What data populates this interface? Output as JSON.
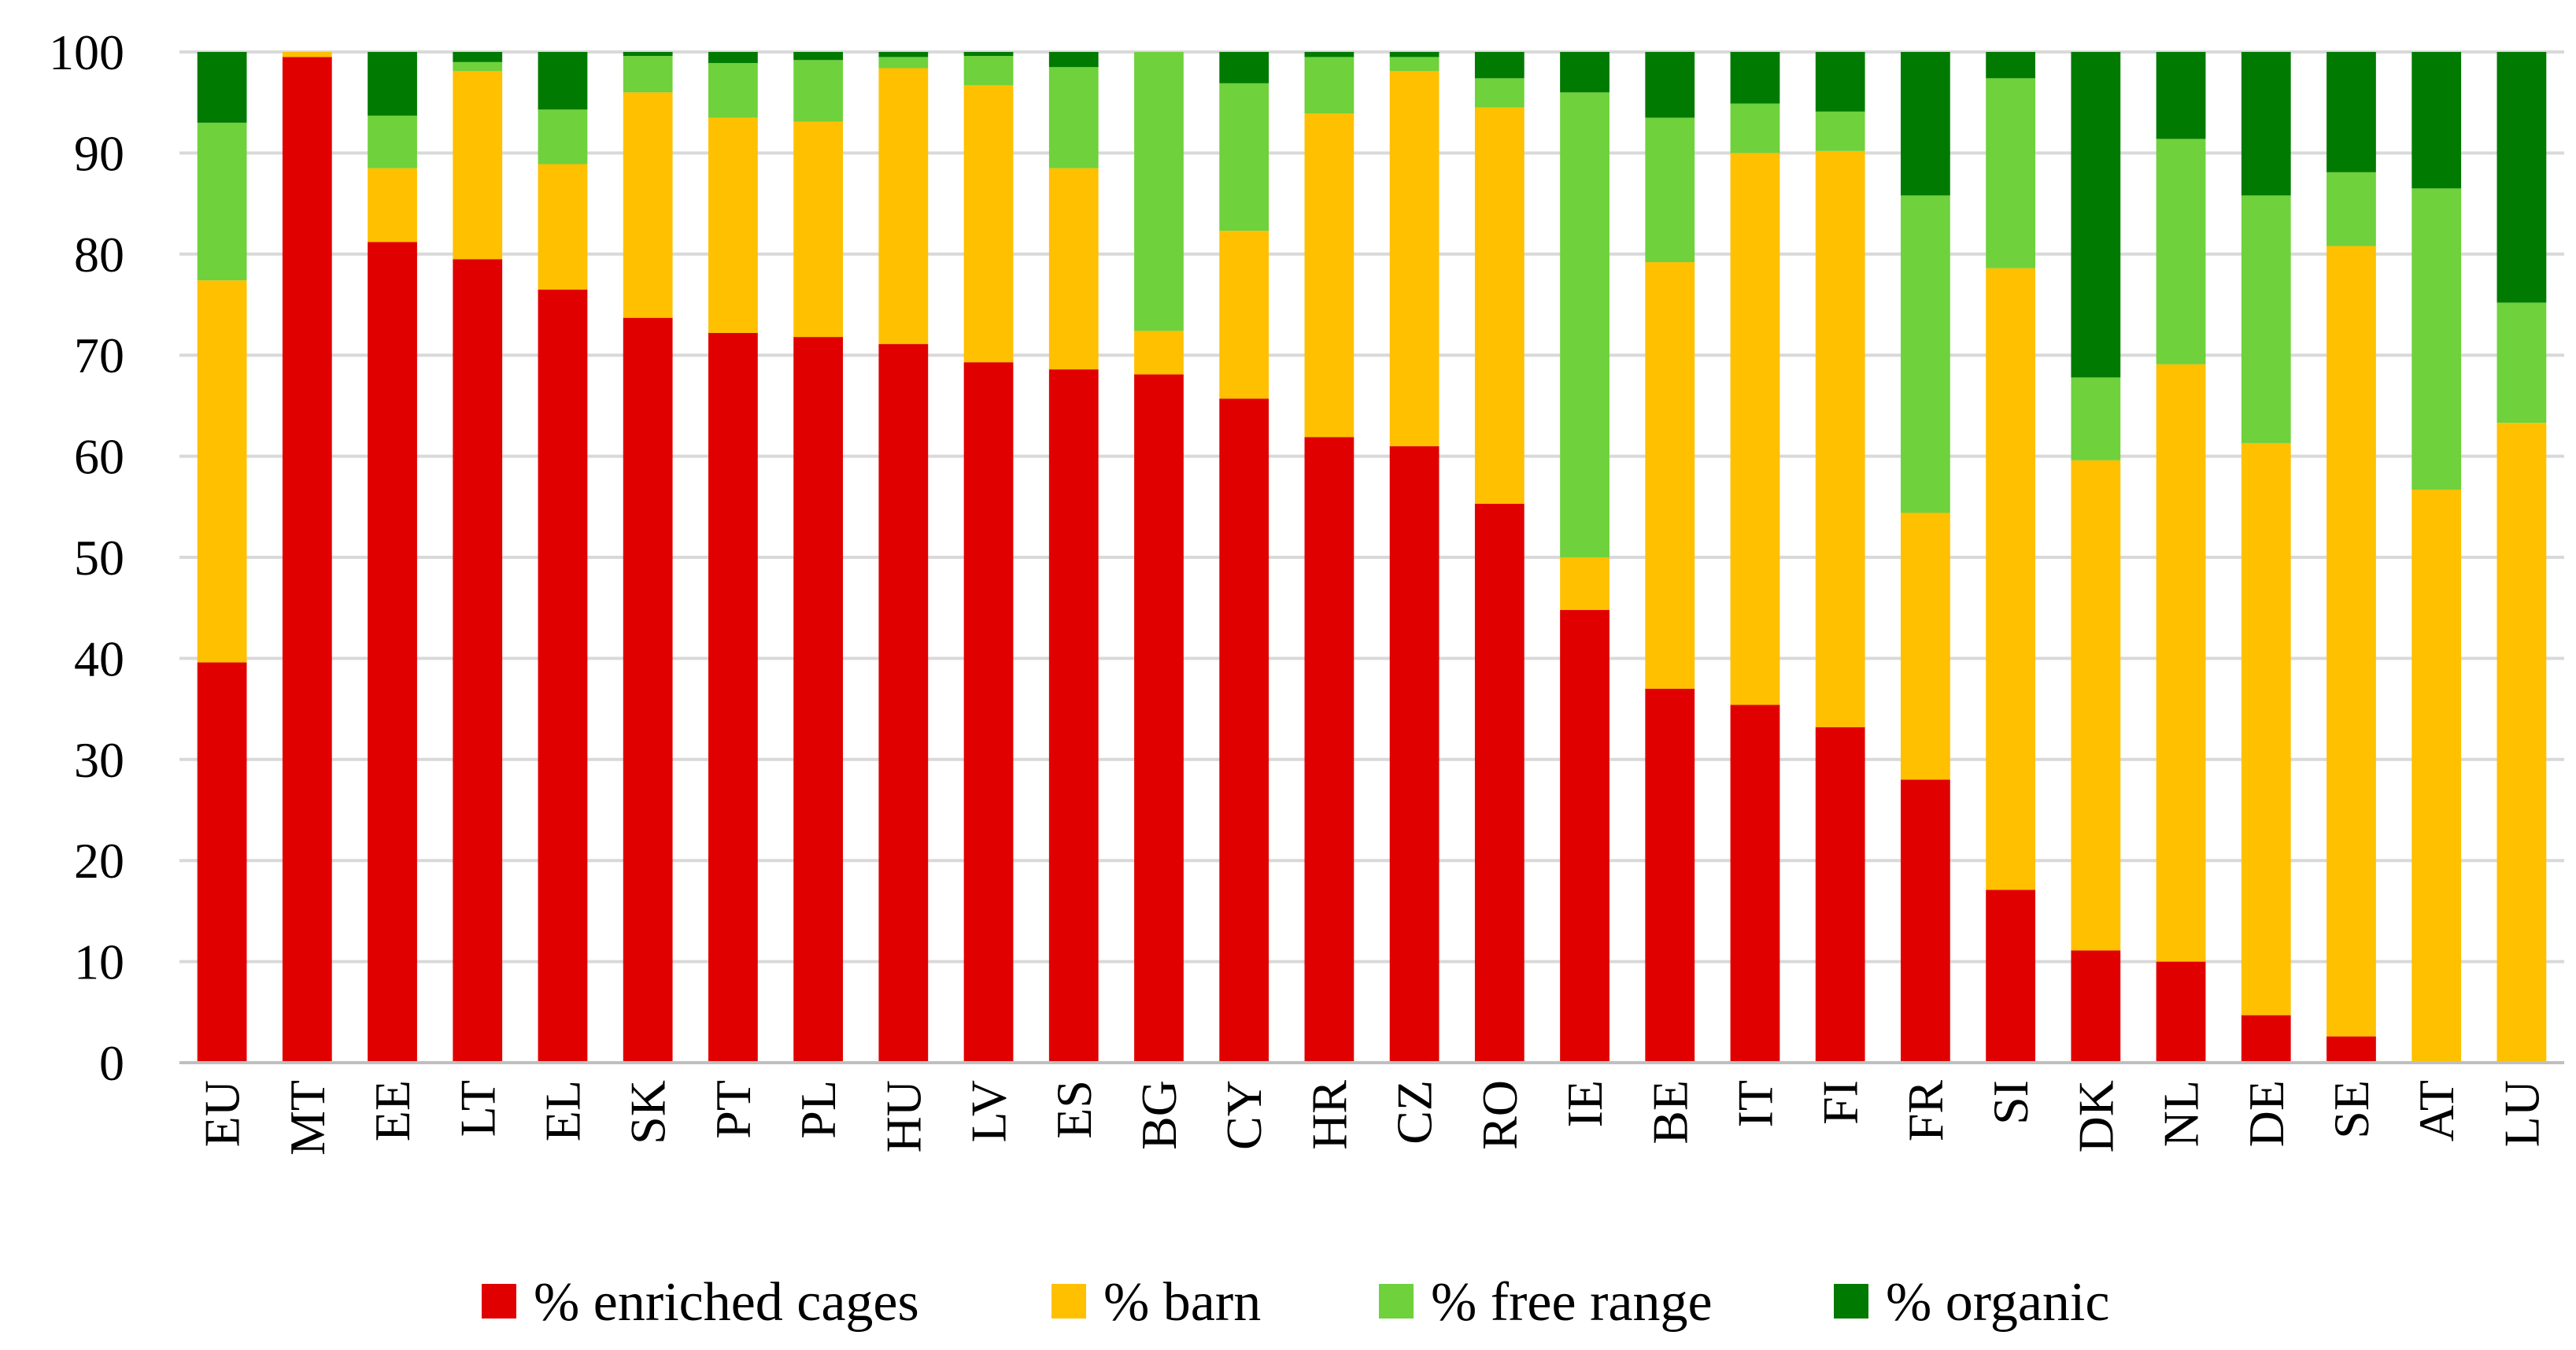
{
  "chart_data": {
    "type": "bar",
    "stacked": true,
    "title": "",
    "xlabel": "",
    "ylabel": "",
    "ylim": [
      0,
      100
    ],
    "yticks": [
      0,
      10,
      20,
      30,
      40,
      50,
      60,
      70,
      80,
      90,
      100
    ],
    "grid": true,
    "legend_position": "bottom",
    "categories": [
      "EU",
      "MT",
      "EE",
      "LT",
      "EL",
      "SK",
      "PT",
      "PL",
      "HU",
      "LV",
      "ES",
      "BG",
      "CY",
      "HR",
      "CZ",
      "RO",
      "IE",
      "BE",
      "IT",
      "FI",
      "FR",
      "SI",
      "DK",
      "NL",
      "DE",
      "SE",
      "AT",
      "LU"
    ],
    "series": [
      {
        "name": "% enriched cages",
        "color": "#e00000",
        "values": [
          39.6,
          99.5,
          81.2,
          79.5,
          76.5,
          73.7,
          72.2,
          71.8,
          71.1,
          69.3,
          68.6,
          68.1,
          65.7,
          61.9,
          61.0,
          55.3,
          44.8,
          37.0,
          35.4,
          33.2,
          28.0,
          17.1,
          11.1,
          10.0,
          4.7,
          2.6,
          0,
          0
        ]
      },
      {
        "name": "% barn",
        "color": "#ffc000",
        "values": [
          37.8,
          0.5,
          7.3,
          18.6,
          12.4,
          22.3,
          21.3,
          21.3,
          27.3,
          27.4,
          19.9,
          4.3,
          16.6,
          32.0,
          37.1,
          39.2,
          5.2,
          42.2,
          54.6,
          57.0,
          26.4,
          61.5,
          48.5,
          59.1,
          56.6,
          78.2,
          56.7,
          63.3
        ]
      },
      {
        "name": "% free range",
        "color": "#6fd13c",
        "values": [
          15.6,
          0,
          5.2,
          0.9,
          5.4,
          3.6,
          5.4,
          6.1,
          1.1,
          2.9,
          10.0,
          27.6,
          14.6,
          5.6,
          1.4,
          2.9,
          46.0,
          14.3,
          4.9,
          3.9,
          31.4,
          18.8,
          8.2,
          22.3,
          24.5,
          7.3,
          29.8,
          11.9
        ]
      },
      {
        "name": "% organic",
        "color": "#007a00",
        "values": [
          7.0,
          0,
          6.3,
          1.0,
          5.7,
          0.4,
          1.1,
          0.8,
          0.5,
          0.4,
          1.5,
          0,
          3.1,
          0.5,
          0.5,
          2.6,
          4.0,
          6.5,
          5.1,
          5.9,
          14.2,
          2.6,
          32.2,
          8.6,
          14.2,
          11.9,
          13.5,
          24.8
        ]
      }
    ]
  }
}
